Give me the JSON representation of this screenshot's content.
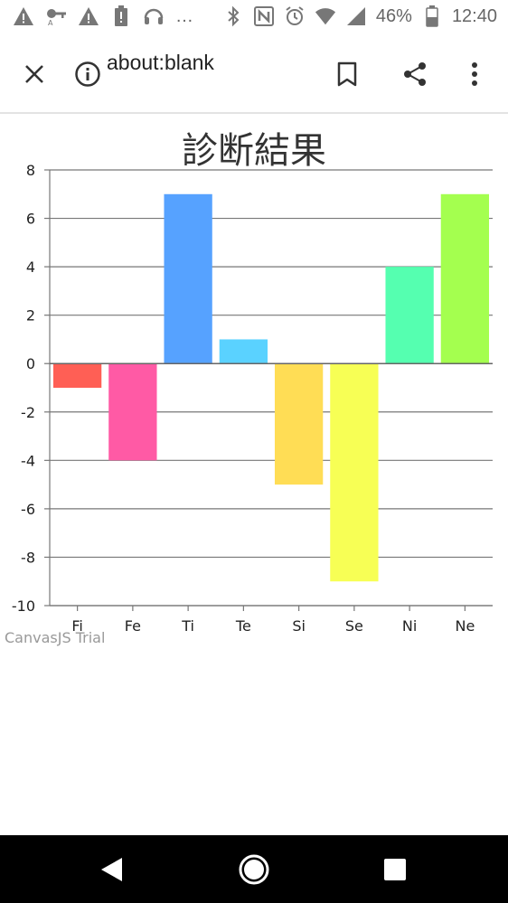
{
  "status_bar": {
    "battery_percent": "46%",
    "time": "12:40",
    "overflow_dots": "…",
    "icons_left": [
      "warning-icon",
      "key-icon",
      "warning-icon",
      "alert-battery-icon",
      "headset-icon",
      "more-icon"
    ],
    "icons_right": [
      "bluetooth-icon",
      "nfc-icon",
      "alarm-icon",
      "wifi-icon",
      "signal-icon",
      "battery-icon"
    ]
  },
  "toolbar": {
    "url": "about:blank",
    "icons": [
      "close-icon",
      "info-icon",
      "bookmark-icon",
      "share-icon",
      "more-vert-icon"
    ]
  },
  "chart_data": {
    "type": "bar",
    "title": "診断結果",
    "categories": [
      "Fi",
      "Fe",
      "Ti",
      "Te",
      "Si",
      "Se",
      "Ni",
      "Ne"
    ],
    "values": [
      -1,
      -4,
      7,
      1,
      -5,
      -9,
      4,
      7
    ],
    "colors": [
      "#ff5f55",
      "#ff5aa5",
      "#56a2ff",
      "#5ad2ff",
      "#ffdd55",
      "#f7ff55",
      "#55ffb0",
      "#a4ff4f"
    ],
    "ylim": [
      -10,
      8
    ],
    "y_ticks": [
      "8",
      "6",
      "4",
      "2",
      "0",
      "-2",
      "-4",
      "-6",
      "-8",
      "-10"
    ],
    "grid": true,
    "xlabel": "",
    "ylabel": ""
  },
  "watermark": "CanvasJS Trial",
  "nav_bar": {
    "icons": [
      "back-icon",
      "home-icon",
      "recents-icon"
    ]
  }
}
